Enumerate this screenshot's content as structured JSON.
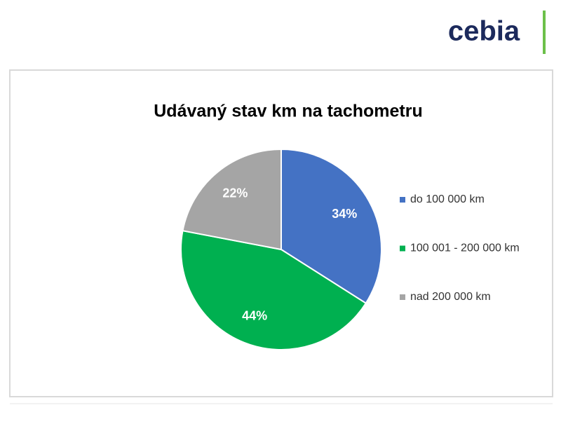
{
  "logo": "cebia",
  "chart_data": {
    "type": "pie",
    "title": "Udávaný stav km na tachometru",
    "categories": [
      "do 100 000 km",
      "100 001 - 200 000 km",
      "nad 200 000 km"
    ],
    "values": [
      34,
      44,
      22
    ],
    "value_labels": [
      "34%",
      "44%",
      "22%"
    ],
    "colors": [
      "#4472c4",
      "#00b050",
      "#a5a5a5"
    ],
    "legend": "right"
  }
}
